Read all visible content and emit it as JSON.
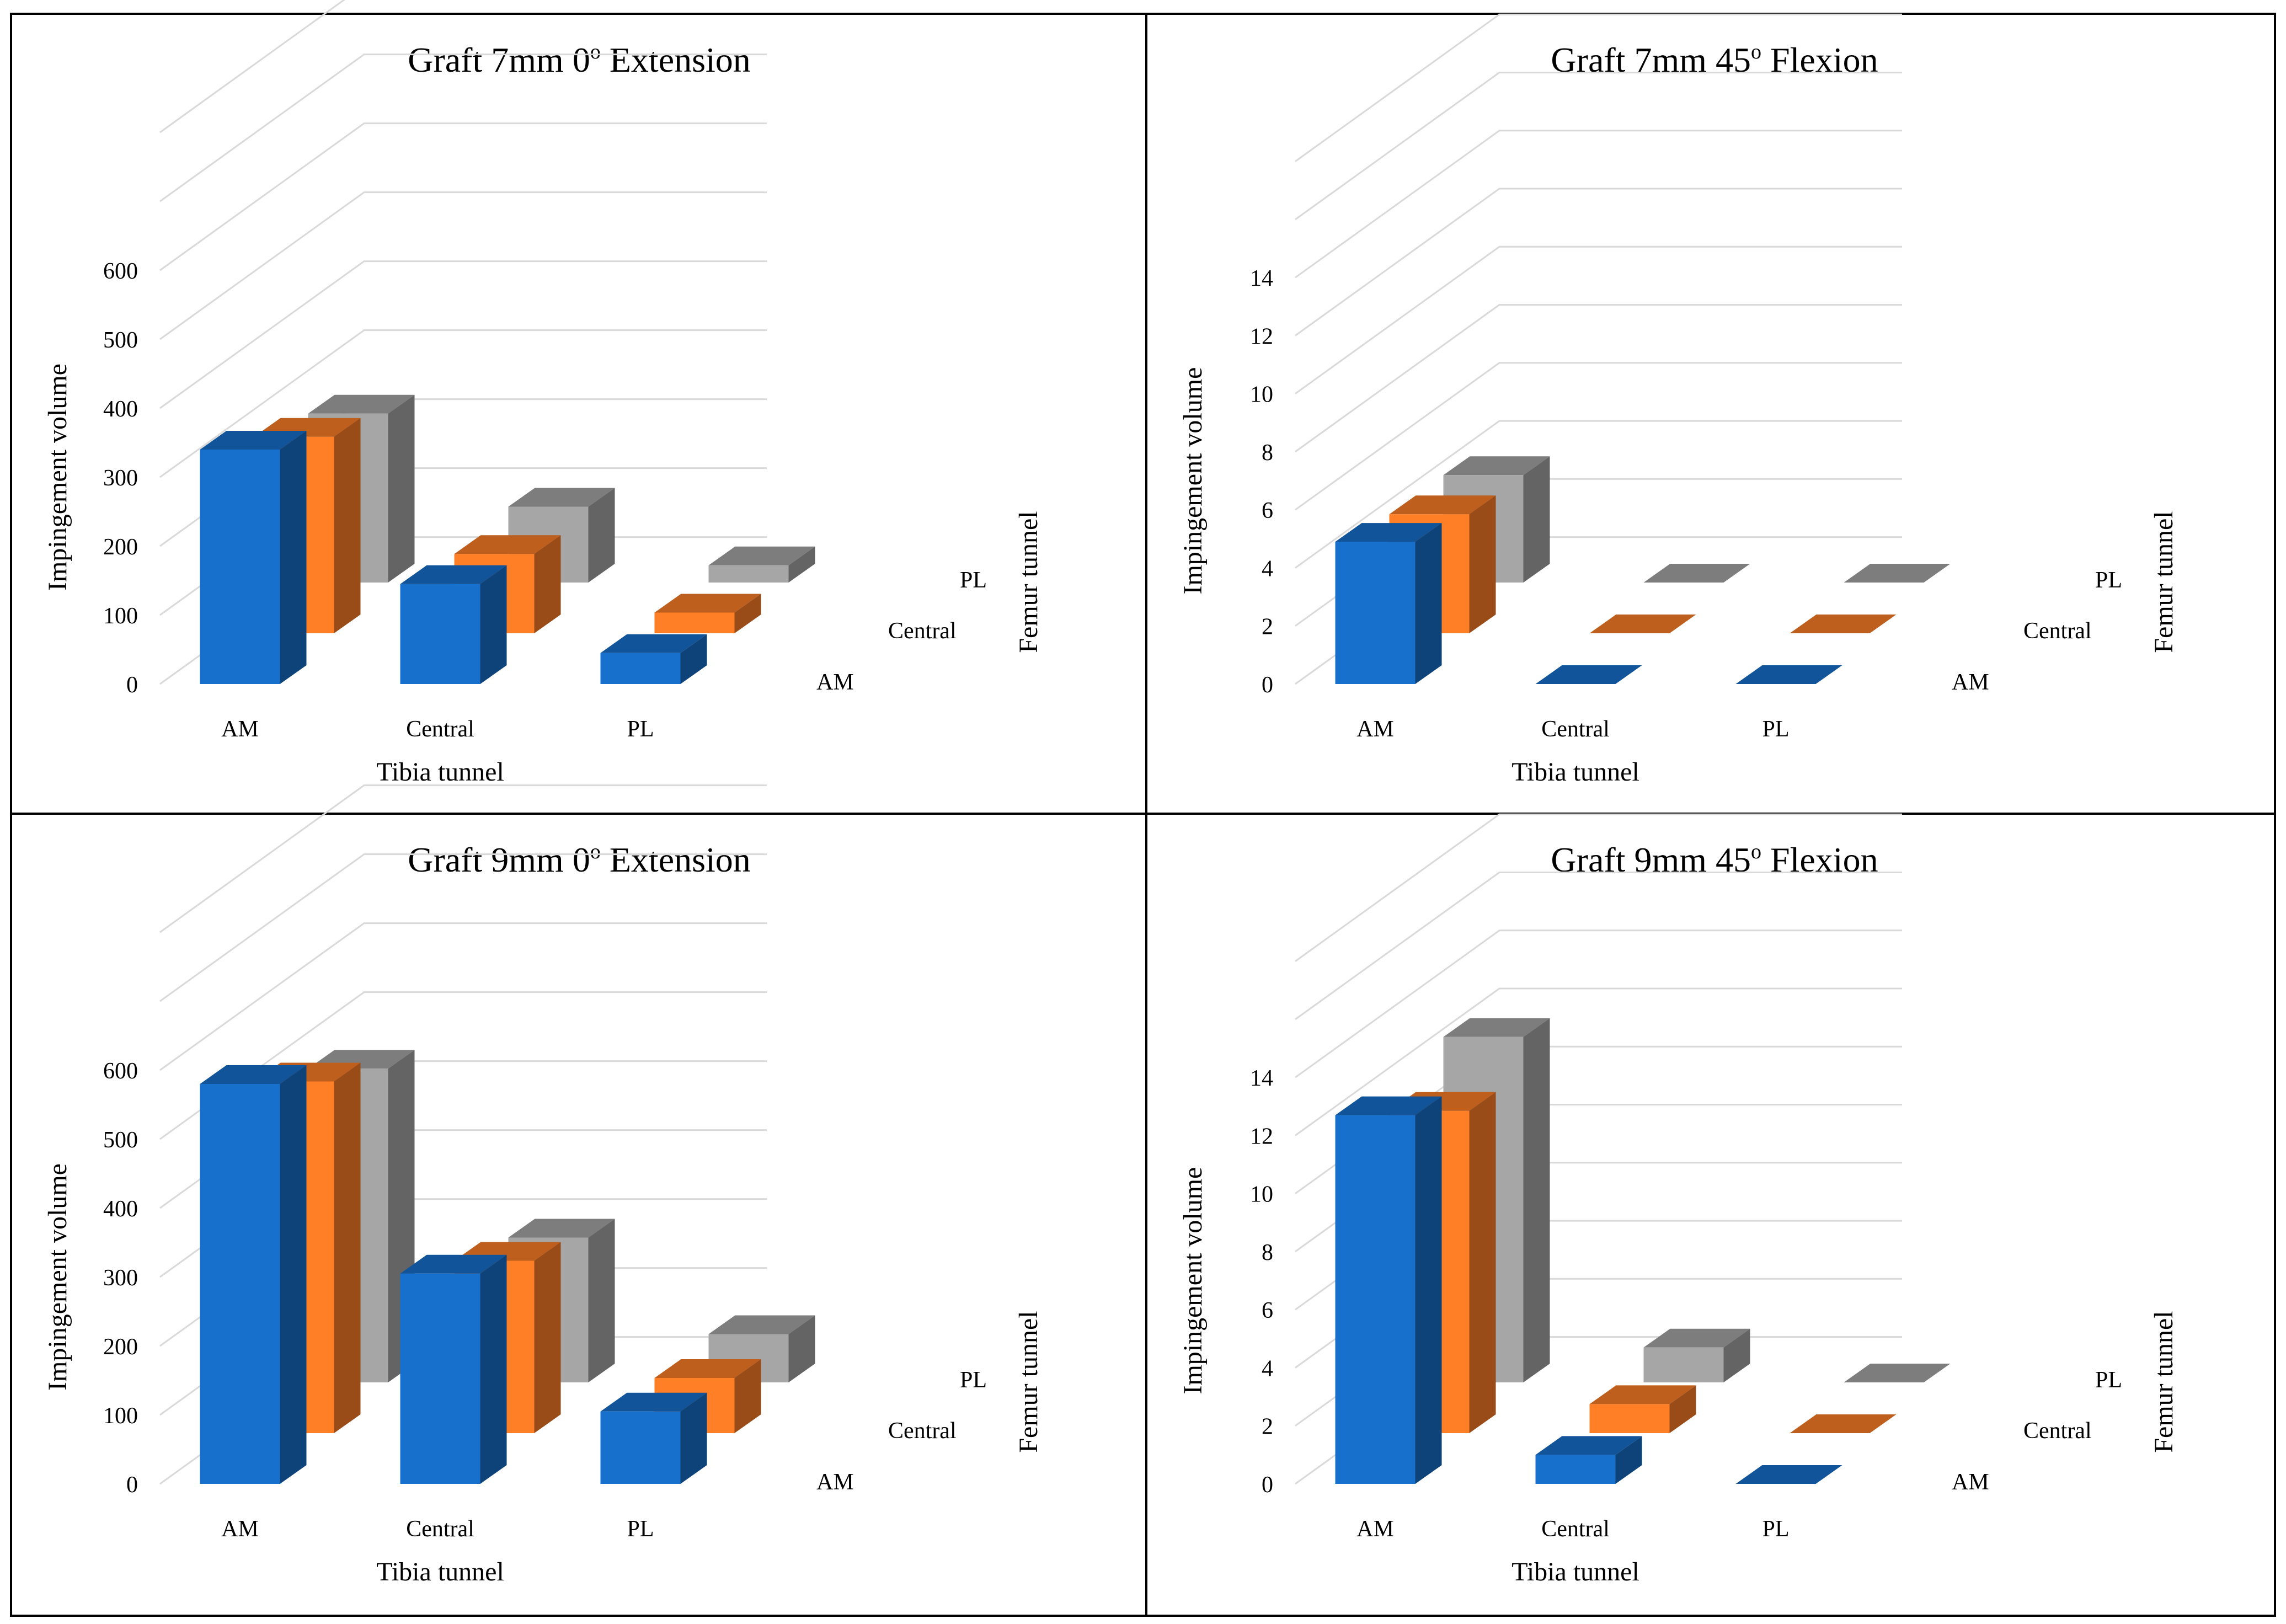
{
  "chart_data": [
    {
      "type": "bar",
      "title_main": "Graft 7mm 0",
      "title_sup": "o",
      "title_rest": " Extension",
      "xlabel": "Tibia tunnel",
      "ylabel": "Impingement volume",
      "zlabel": "Femur tunnel",
      "categories": [
        "AM",
        "Central",
        "PL"
      ],
      "series": [
        {
          "name": "AM",
          "values": [
            340,
            145,
            45
          ]
        },
        {
          "name": "Central",
          "values": [
            285,
            115,
            30
          ]
        },
        {
          "name": "PL",
          "values": [
            245,
            110,
            25
          ]
        }
      ],
      "yticks": [
        0,
        100,
        200,
        300,
        400,
        500,
        600
      ],
      "ylim": [
        0,
        800
      ],
      "colors": {
        "AM": "#1770cc",
        "Central": "#ff7f27",
        "PL": "#a6a6a6"
      }
    },
    {
      "type": "bar",
      "title_main": "Graft 7mm 45",
      "title_sup": "o",
      "title_rest": " Flexion",
      "xlabel": "Tibia tunnel",
      "ylabel": "Impingement volume",
      "zlabel": "Femur tunnel",
      "categories": [
        "AM",
        "Central",
        "PL"
      ],
      "series": [
        {
          "name": "AM",
          "values": [
            4.9,
            0,
            0
          ]
        },
        {
          "name": "Central",
          "values": [
            4.1,
            0,
            0
          ]
        },
        {
          "name": "PL",
          "values": [
            3.7,
            0,
            0
          ]
        }
      ],
      "yticks": [
        0,
        2,
        4,
        6,
        8,
        10,
        12,
        14
      ],
      "ylim": [
        0,
        19
      ],
      "colors": {
        "AM": "#1770cc",
        "Central": "#ff7f27",
        "PL": "#a6a6a6"
      }
    },
    {
      "type": "bar",
      "title_main": "Graft 9mm 0",
      "title_sup": "o",
      "title_rest": " Extension",
      "xlabel": "Tibia tunnel",
      "ylabel": "Impingement volume",
      "zlabel": "Femur tunnel",
      "categories": [
        "AM",
        "Central",
        "PL"
      ],
      "series": [
        {
          "name": "AM",
          "values": [
            580,
            305,
            105
          ]
        },
        {
          "name": "Central",
          "values": [
            510,
            250,
            80
          ]
        },
        {
          "name": "PL",
          "values": [
            455,
            210,
            70
          ]
        }
      ],
      "yticks": [
        0,
        100,
        200,
        300,
        400,
        500,
        600
      ],
      "ylim": [
        0,
        800
      ],
      "colors": {
        "AM": "#1770cc",
        "Central": "#ff7f27",
        "PL": "#a6a6a6"
      }
    },
    {
      "type": "bar",
      "title_main": "Graft 9mm 45",
      "title_sup": "o",
      "title_rest": " Flexion",
      "xlabel": "Tibia tunnel",
      "ylabel": "Impingement volume",
      "zlabel": "Femur tunnel",
      "categories": [
        "AM",
        "Central",
        "PL"
      ],
      "series": [
        {
          "name": "AM",
          "values": [
            12.7,
            1.0,
            0
          ]
        },
        {
          "name": "Central",
          "values": [
            11.1,
            1.0,
            0
          ]
        },
        {
          "name": "PL",
          "values": [
            11.9,
            1.2,
            0
          ]
        }
      ],
      "yticks": [
        0,
        2,
        4,
        6,
        8,
        10,
        12,
        14
      ],
      "ylim": [
        0,
        19
      ],
      "colors": {
        "AM": "#1770cc",
        "Central": "#ff7f27",
        "PL": "#a6a6a6"
      }
    }
  ]
}
